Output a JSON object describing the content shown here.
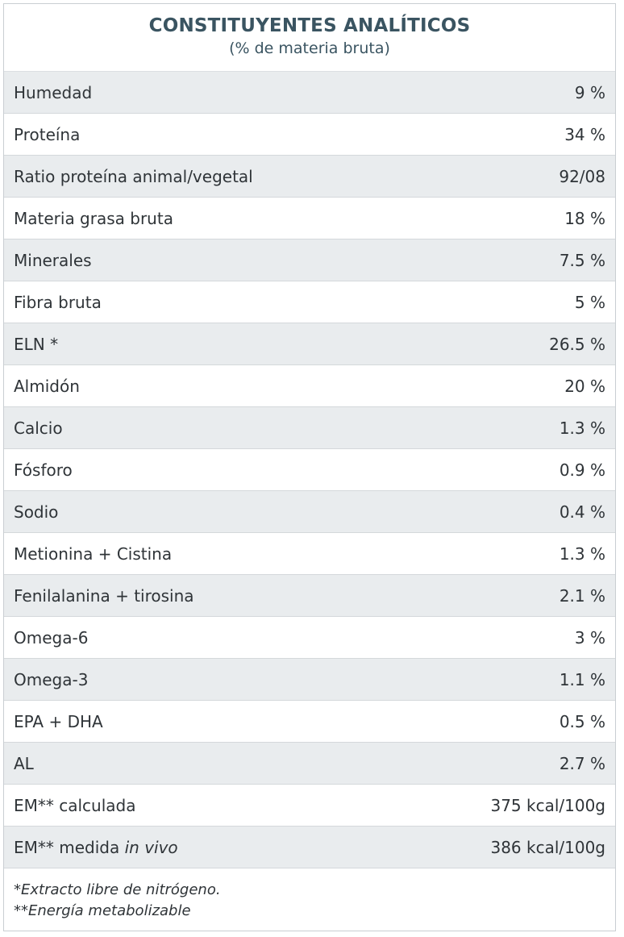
{
  "header": {
    "title": "CONSTITUYENTES ANALÍTICOS",
    "subtitle": "(% de materia bruta)"
  },
  "rows": [
    {
      "label": "Humedad",
      "value": "9 %"
    },
    {
      "label": "Proteína",
      "value": "34 %"
    },
    {
      "label": "Ratio proteína animal/vegetal",
      "value": "92/08"
    },
    {
      "label": "Materia grasa bruta",
      "value": "18 %"
    },
    {
      "label": "Minerales",
      "value": "7.5 %"
    },
    {
      "label": "Fibra bruta",
      "value": "5 %"
    },
    {
      "label": "ELN *",
      "value": "26.5 %"
    },
    {
      "label": "Almidón",
      "value": "20 %"
    },
    {
      "label": "Calcio",
      "value": "1.3 %"
    },
    {
      "label": "Fósforo",
      "value": "0.9 %"
    },
    {
      "label": "Sodio",
      "value": "0.4 %"
    },
    {
      "label": "Metionina + Cistina",
      "value": "1.3 %"
    },
    {
      "label": "Fenilalanina + tirosina",
      "value": "2.1 %"
    },
    {
      "label": "Omega-6",
      "value": "3 %"
    },
    {
      "label": "Omega-3",
      "value": "1.1 %"
    },
    {
      "label": "EPA + DHA",
      "value": "0.5 %"
    },
    {
      "label": "AL",
      "value": "2.7 %"
    },
    {
      "label": "EM** calculada",
      "value": "375 kcal/100g"
    }
  ],
  "last_row": {
    "label_prefix": "EM** medida ",
    "label_italic": "in vivo",
    "value": "386 kcal/100g"
  },
  "footer": {
    "note1": "*Extracto libre de nitrógeno.",
    "note2": "**Energía metabolizable"
  },
  "colors": {
    "title": "#3a5461",
    "shaded_row": "#e9ecee",
    "text": "#2f3438"
  }
}
